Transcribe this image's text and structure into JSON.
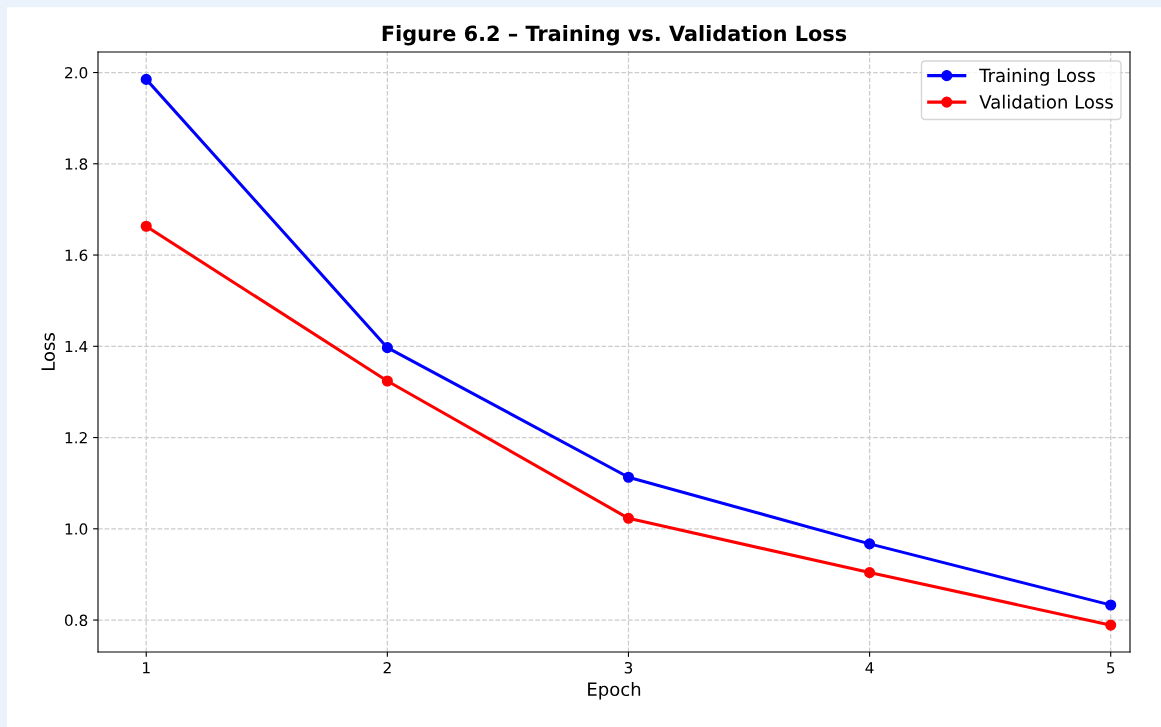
{
  "chart_data": {
    "type": "line",
    "title": "Figure 6.2 – Training vs. Validation Loss",
    "xlabel": "Epoch",
    "ylabel": "Loss",
    "x": [
      1,
      2,
      3,
      4,
      5
    ],
    "series": [
      {
        "name": "Training Loss",
        "color": "#0000ff",
        "values": [
          1.985,
          1.397,
          1.113,
          0.967,
          0.833
        ]
      },
      {
        "name": "Validation Loss",
        "color": "#ff0000",
        "values": [
          1.663,
          1.324,
          1.023,
          0.904,
          0.789
        ]
      }
    ],
    "xlim": [
      0.8,
      5.08
    ],
    "ylim": [
      0.73,
      2.045
    ],
    "xticks": [
      1,
      2,
      3,
      4,
      5
    ],
    "yticks": [
      {
        "value": 0.8,
        "label": "0.8"
      },
      {
        "value": 1.0,
        "label": "1.0"
      },
      {
        "value": 1.2,
        "label": "1.2"
      },
      {
        "value": 1.4,
        "label": "1.4"
      },
      {
        "value": 1.6,
        "label": "1.6"
      },
      {
        "value": 1.8,
        "label": "1.8"
      },
      {
        "value": 2.0,
        "label": "2.0"
      }
    ],
    "grid": true,
    "legend": "top right",
    "marker": "circle",
    "line_style": "solid"
  }
}
